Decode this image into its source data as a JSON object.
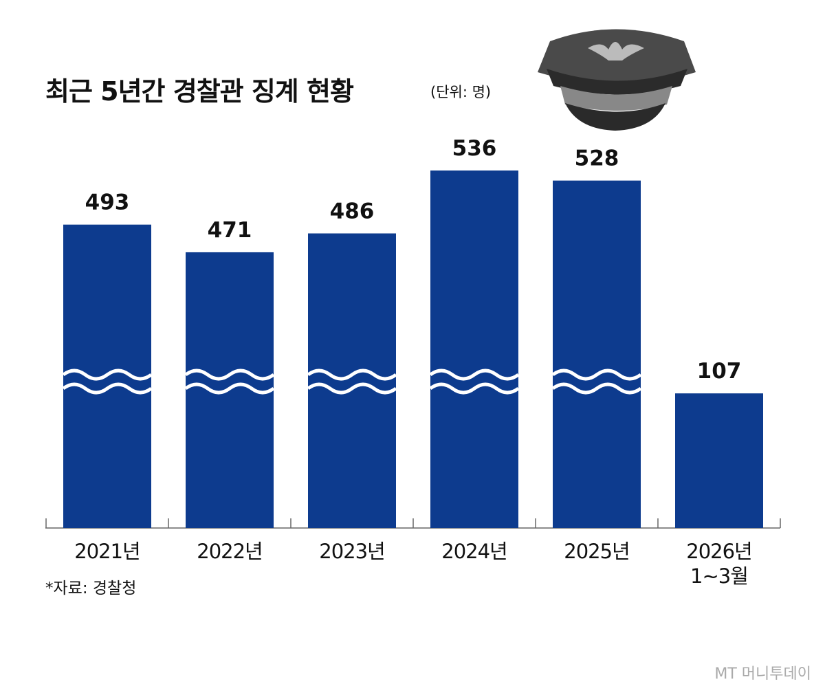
{
  "chart_data": {
    "type": "bar",
    "title": "최근 5년간 경찰관 징계 현황",
    "subtitle": "(단위: 명)",
    "categories": [
      "2021년",
      "2022년",
      "2023년",
      "2024년",
      "2025년",
      "2026년\n1~3월"
    ],
    "values": [
      493,
      471,
      486,
      536,
      528,
      107
    ],
    "color": "#0d3b8e",
    "source": "*자료: 경찰청",
    "watermark": "MT 머니투데이"
  }
}
